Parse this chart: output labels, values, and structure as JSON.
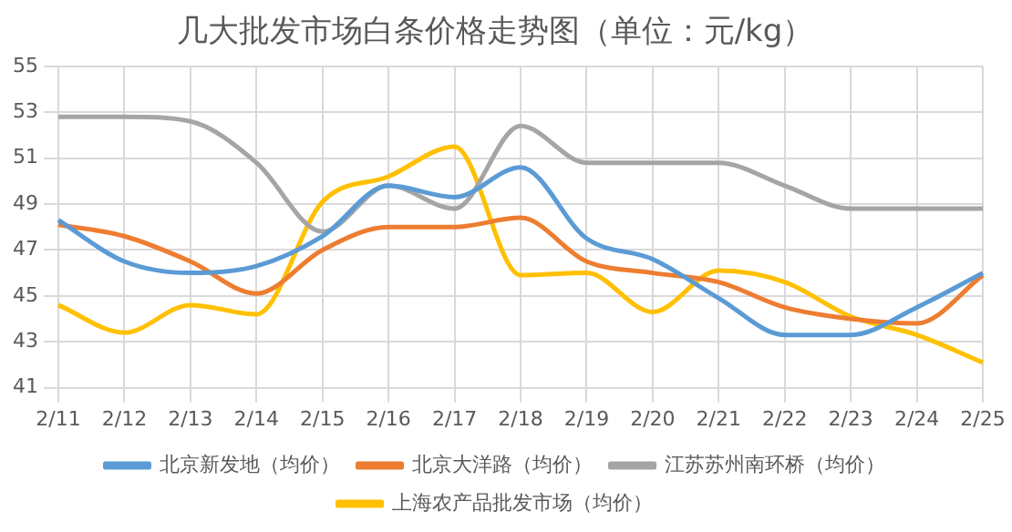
{
  "chart_data": {
    "type": "line",
    "title": "几大批发市场白条价格走势图（单位：元/kg）",
    "categories": [
      "2/11",
      "2/12",
      "2/13",
      "2/14",
      "2/15",
      "2/16",
      "2/17",
      "2/18",
      "2/19",
      "2/20",
      "2/21",
      "2/22",
      "2/23",
      "2/24",
      "2/25"
    ],
    "series": [
      {
        "name": "北京新发地（均价）",
        "color": "#5b9bd5",
        "values": [
          48.3,
          46.5,
          46.0,
          46.3,
          47.6,
          49.8,
          49.3,
          50.6,
          47.5,
          46.6,
          44.9,
          43.3,
          43.3,
          44.5,
          46.0
        ]
      },
      {
        "name": "北京大洋路（均价）",
        "color": "#ed7d31",
        "values": [
          48.1,
          47.6,
          46.5,
          45.1,
          47.0,
          48.0,
          48.0,
          48.4,
          46.5,
          46.0,
          45.6,
          44.5,
          44.0,
          43.8,
          45.9
        ]
      },
      {
        "name": "江苏苏州南环桥（均价）",
        "color": "#a5a5a5",
        "values": [
          52.8,
          52.8,
          52.6,
          50.8,
          47.8,
          49.8,
          48.8,
          52.4,
          50.8,
          50.8,
          50.8,
          49.8,
          48.8,
          48.8,
          48.8
        ]
      },
      {
        "name": "上海农产品批发市场（均价）",
        "color": "#ffc000",
        "values": [
          44.6,
          43.4,
          44.6,
          44.2,
          49.1,
          50.2,
          51.5,
          45.9,
          46.0,
          44.3,
          46.1,
          45.6,
          44.1,
          43.3,
          42.1
        ]
      }
    ],
    "ylim": [
      41,
      55
    ],
    "yticks": [
      41,
      43,
      45,
      47,
      49,
      51,
      53,
      55
    ],
    "grid": true,
    "legend": "bottom",
    "marker": "none",
    "line_style": "solid"
  }
}
